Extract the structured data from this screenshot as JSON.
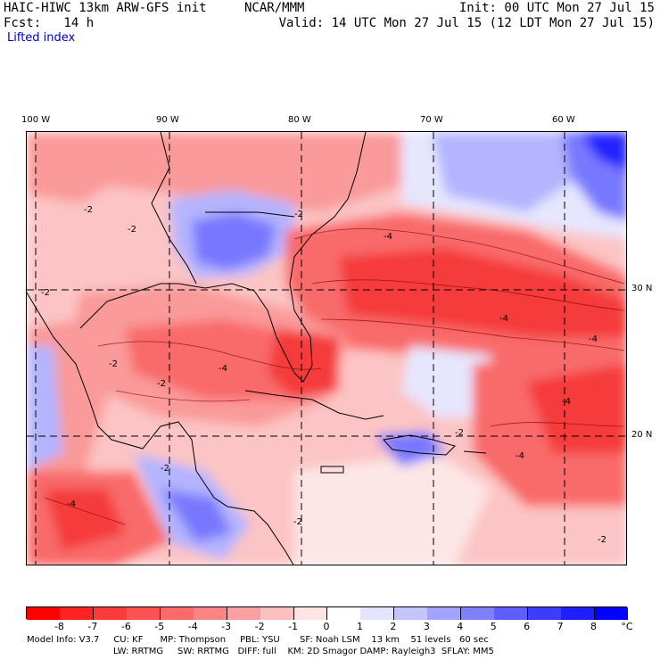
{
  "header": {
    "model_title": "HAIC-HIWC 13km ARW-GFS init",
    "organization": "NCAR/MMM",
    "init_time": "Init: 00 UTC Mon 27 Jul 15",
    "forecast_hour": "Fcst:   14 h",
    "valid_time": "Valid: 14 UTC Mon 27 Jul 15 (12 LDT Mon 27 Jul 15)",
    "field_name": "Lifted index"
  },
  "longitude_labels": [
    "100 W",
    "90 W",
    "80 W",
    "70 W",
    "60 W"
  ],
  "latitude_labels": [
    "30 N",
    "20 N"
  ],
  "map_contour_labels": [
    "-2",
    "-2",
    "-2",
    "-2",
    "-2",
    "-2",
    "-4",
    "-4",
    "-4",
    "-4",
    "-4",
    "-4",
    "-4",
    "-2",
    "-2",
    "-2",
    "-2"
  ],
  "colorbar": {
    "tick_labels": [
      "-8",
      "-7",
      "-6",
      "-5",
      "-4",
      "-3",
      "-2",
      "-1",
      "0",
      "1",
      "2",
      "3",
      "4",
      "5",
      "6",
      "7",
      "8"
    ],
    "unit": "°C",
    "colors": [
      "#ff0000",
      "#ff2222",
      "#ff3a3a",
      "#ff5252",
      "#fd6a6a",
      "#fb8484",
      "#fba0a0",
      "#fdc0c0",
      "#ffe4e4",
      "#ffffff",
      "#e4e4ff",
      "#c4c4ff",
      "#a2a2ff",
      "#8080ff",
      "#5e5eff",
      "#3c3cff",
      "#1e1eff",
      "#0000ff"
    ]
  },
  "footer": {
    "line1": "Model Info: V3.7     CU: KF      MP: Thompson     PBL: YSU       SF: Noah LSM    13 km    51 levels   60 sec",
    "line2": "LW: RRTMG     SW: RRTMG   DIFF: full    KM: 2D Smagor DAMP: Rayleigh3  SFLAY: MM5"
  },
  "palette": {
    "strong_red": "#f53a3a",
    "red": "#f96a6a",
    "pink": "#fa9a9a",
    "light_pink": "#fcc4c4",
    "pale": "#fde6e6",
    "pale_blue": "#e6e6ff",
    "light_blue": "#b4b4ff",
    "blue": "#7878ff",
    "deep_blue": "#2222ff"
  }
}
